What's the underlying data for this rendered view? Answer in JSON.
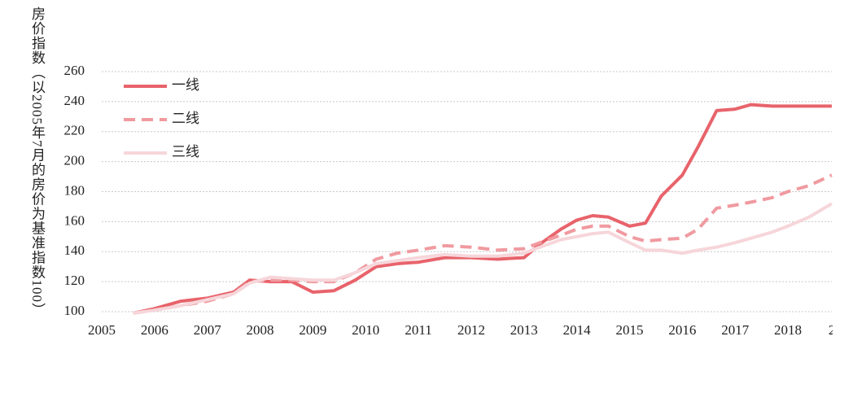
{
  "chart_data": {
    "type": "line",
    "y_label": "房价指数（以2005年7月的房价为基准指数100）",
    "x": [
      2005.6,
      2006,
      2006.5,
      2007,
      2007.5,
      2007.8,
      2008.2,
      2008.6,
      2009,
      2009.4,
      2009.8,
      2010.2,
      2010.6,
      2011,
      2011.5,
      2012,
      2012.5,
      2013,
      2013.3,
      2013.7,
      2014,
      2014.3,
      2014.6,
      2015,
      2015.3,
      2015.6,
      2016,
      2016.3,
      2016.65,
      2017,
      2017.3,
      2017.7,
      2018,
      2018.4,
      2018.83
    ],
    "series": [
      {
        "name": "一线",
        "color": "#e8636b",
        "dash": "solid",
        "values": [
          99,
          102,
          107,
          109,
          113,
          121,
          120,
          120,
          113,
          114,
          121,
          130,
          132,
          133,
          136,
          136,
          135,
          136,
          145,
          155,
          161,
          164,
          163,
          157,
          159,
          177,
          191,
          210,
          234,
          235,
          238,
          237,
          237,
          237,
          237
        ]
      },
      {
        "name": "二线",
        "color": "#f09aa0",
        "dash": "dashed",
        "values": [
          99,
          101,
          104,
          107,
          112,
          120,
          121,
          121,
          120,
          120,
          126,
          135,
          139,
          141,
          144,
          143,
          141,
          142,
          146,
          151,
          155,
          157,
          157,
          150,
          147,
          148,
          149,
          155,
          169,
          171,
          173,
          176,
          180,
          184,
          191
        ]
      },
      {
        "name": "三线",
        "color": "#f6d6da",
        "dash": "solid",
        "values": [
          99,
          101,
          104,
          108,
          112,
          119,
          123,
          122,
          121,
          121,
          126,
          132,
          134,
          136,
          138,
          137,
          137,
          139,
          143,
          148,
          150,
          152,
          153,
          146,
          141,
          141,
          139,
          141,
          143,
          146,
          149,
          153,
          157,
          163,
          172
        ]
      }
    ],
    "xlim": [
      2005,
      2019
    ],
    "xticks": [
      2005,
      2006,
      2007,
      2008,
      2009,
      2010,
      2011,
      2012,
      2013,
      2014,
      2015,
      2016,
      2017,
      2018,
      {
        "value": 2019,
        "label": "2"
      }
    ],
    "ylim": [
      100,
      260
    ],
    "yticks": [
      100,
      120,
      140,
      160,
      180,
      200,
      220,
      240,
      260
    ],
    "grid": true,
    "legend": "top-left"
  }
}
